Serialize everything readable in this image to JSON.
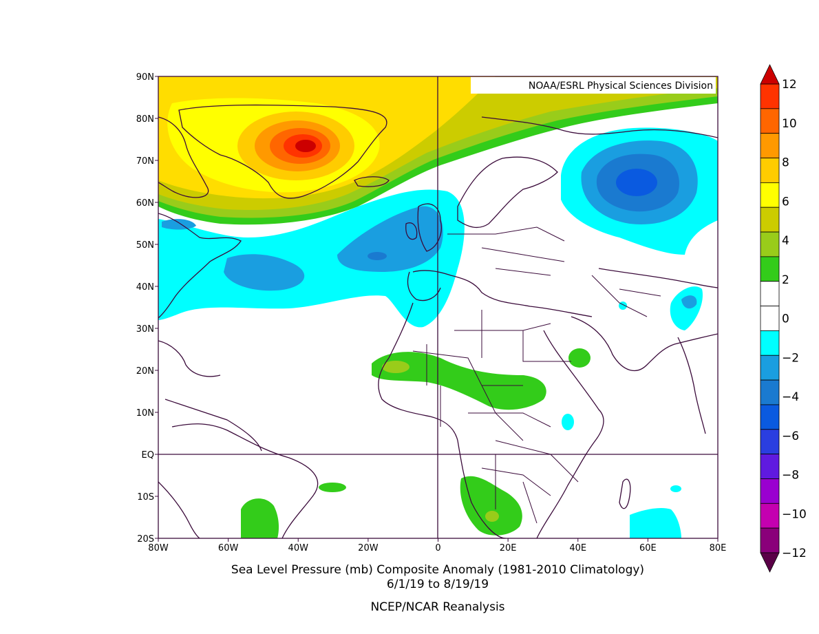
{
  "credit": "NOAA/ESRL Physical Sciences Division",
  "caption": {
    "line1": "Sea Level Pressure (mb) Composite Anomaly (1981-2010 Climatology)",
    "line2": "6/1/19  to 8/19/19",
    "line3": "NCEP/NCAR Reanalysis"
  },
  "axes": {
    "lat_labels": [
      "90N",
      "80N",
      "70N",
      "60N",
      "50N",
      "40N",
      "30N",
      "20N",
      "10N",
      "EQ",
      "10S",
      "20S"
    ],
    "lon_labels": [
      "80W",
      "60W",
      "40W",
      "20W",
      "0",
      "20E",
      "40E",
      "60E",
      "80E"
    ]
  },
  "colorbar": {
    "colors": [
      "#5a0047",
      "#8a007a",
      "#c400b0",
      "#9a00d0",
      "#5f1ae0",
      "#2a3ee0",
      "#0a5ae0",
      "#1a7ad0",
      "#1a9ee0",
      "#00ffff",
      "#ffffff",
      "#ffffff",
      "#33cc1a",
      "#99cc1a",
      "#cccc00",
      "#ffff00",
      "#ffcc00",
      "#ff9900",
      "#ff6600",
      "#ff3300",
      "#cc0000"
    ],
    "tick_labels": [
      "12",
      "10",
      "8",
      "6",
      "4",
      "2",
      "0",
      "-2",
      "-4",
      "-6",
      "-8",
      "-10",
      "-12"
    ]
  }
}
